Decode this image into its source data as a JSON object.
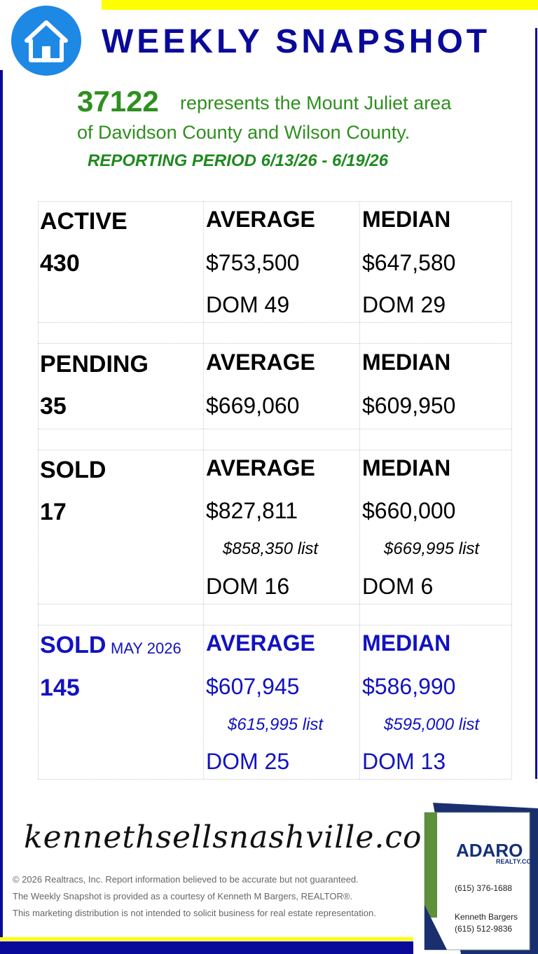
{
  "header": {
    "title": "WEEKLY SNAPSHOT"
  },
  "intro": {
    "zip": "37122",
    "line1": "represents the Mount Juliet area",
    "line2": "of Davidson County and Wilson County.",
    "period": "REPORTING PERIOD 6/13/26 - 6/19/26"
  },
  "sections": [
    {
      "label": "ACTIVE",
      "count": "430",
      "average": {
        "label": "AVERAGE",
        "price": "$753,500",
        "dom": "DOM 49"
      },
      "median": {
        "label": "MEDIAN",
        "price": "$647,580",
        "dom": "DOM 29"
      }
    },
    {
      "label": "PENDING",
      "count": "35",
      "average": {
        "label": "AVERAGE",
        "price": "$669,060"
      },
      "median": {
        "label": "MEDIAN",
        "price": "$609,950"
      }
    },
    {
      "label": "SOLD",
      "count": "17",
      "average": {
        "label": "AVERAGE",
        "price": "$827,811",
        "list": "$858,350 list",
        "dom": "DOM 16"
      },
      "median": {
        "label": "MEDIAN",
        "price": "$660,000",
        "list": "$669,995 list",
        "dom": "DOM 6"
      }
    },
    {
      "label": "SOLD",
      "period": "MAY 2026",
      "count": "145",
      "average": {
        "label": "AVERAGE",
        "price": "$607,945",
        "list": "$615,995 list",
        "dom": "DOM 25"
      },
      "median": {
        "label": "MEDIAN",
        "price": "$586,990",
        "list": "$595,000 list",
        "dom": "DOM 13"
      }
    }
  ],
  "footer": {
    "website": "kennethsellsnashville.com",
    "notes": [
      "© 2026 Realtracs, Inc. Report information believed to be accurate but not guaranteed.",
      "The Weekly Snapshot is provided as a courtesy of Kenneth M Bargers, REALTOR®.",
      "This marketing distribution is not intended to solicit business for real estate representation."
    ]
  },
  "card": {
    "brand": "ADARO",
    "brand_sub": "REALTY.COM",
    "phone": "(615) 376-1688",
    "agent": "Kenneth Bargers",
    "agent_phone": "(615) 512-9836"
  }
}
